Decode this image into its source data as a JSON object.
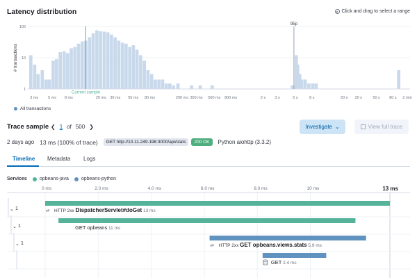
{
  "header": {
    "title": "Latency distribution",
    "hint": "Click and drag to select a range"
  },
  "chart_data": {
    "type": "bar",
    "ylabel": "# transactions",
    "y_scale": "log",
    "y_ticks": [
      "100",
      "10",
      "1"
    ],
    "x_scale": "log",
    "x_ticks": [
      "3 ms",
      "5 ms",
      "8 ms",
      "20 ms",
      "30 ms",
      "50 ms",
      "80 ms",
      "200 ms",
      "300 ms",
      "500 ms",
      "800 ms",
      "2 s",
      "3 s",
      "5 s",
      "8 s",
      "20 s",
      "30 s",
      "50 s",
      "80 s",
      "2 min"
    ],
    "annotations": [
      {
        "label": "Current sample",
        "at": "13 ms"
      },
      {
        "label": "95p",
        "at": "4.8 s"
      }
    ],
    "series": [
      {
        "legend": "All transactions",
        "color": "#6092c0",
        "bins_ms": [
          2.6,
          2.9,
          3.2,
          3.6,
          4.0,
          4.4,
          4.9,
          5.4,
          6.0,
          6.7,
          7.4,
          8.2,
          9.1,
          10.1,
          11.2,
          12.4,
          13.8,
          15.3,
          17.0,
          18.8,
          20.9,
          23.2,
          25.7,
          28.5,
          31.6,
          35.1,
          38.9,
          43.2,
          47.9,
          53.1,
          58.9,
          65.4,
          72.5,
          80.5,
          89.3,
          99.0,
          110,
          122,
          135,
          150,
          170,
          250,
          320,
          450,
          4400,
          4600,
          4900,
          5100,
          5400,
          5700,
          6300,
          7000,
          7800,
          8600,
          90000
        ],
        "counts": [
          12,
          6,
          3,
          4,
          2,
          2,
          8,
          9,
          15,
          16,
          14,
          20,
          22,
          28,
          33,
          35,
          45,
          60,
          75,
          70,
          68,
          65,
          55,
          45,
          35,
          30,
          28,
          22,
          25,
          18,
          12,
          8,
          4,
          3,
          2,
          2,
          2,
          1.5,
          1.5,
          1.3,
          1.5,
          1.3,
          1.3,
          1.3,
          1.3,
          1.3,
          12,
          6,
          3,
          2,
          2,
          1.5,
          1.5,
          1.5,
          4
        ]
      }
    ],
    "legend": "bottom-left"
  },
  "trace": {
    "title": "Trace sample",
    "page_current": "1",
    "page_of": "of",
    "page_total": "500",
    "investigate_label": "Investigate",
    "view_full_label": "View full trace",
    "age": "2 days ago",
    "duration": "13 ms (100% of trace)",
    "request": "GET http://10.11.249.198:3000/api/stats",
    "status": "200 OK",
    "agent": "Python aiohttp (3.3.2)"
  },
  "tabs": [
    {
      "label": "Timeline",
      "active": true
    },
    {
      "label": "Metadata",
      "active": false
    },
    {
      "label": "Logs",
      "active": false
    }
  ],
  "services": {
    "label": "Services",
    "items": [
      {
        "name": "opbeans-java",
        "color": "#54b399"
      },
      {
        "name": "opbeans-python",
        "color": "#6092c0"
      }
    ]
  },
  "waterfall": {
    "axis_ticks": [
      "0 ms",
      "2.0 ms",
      "4.0 ms",
      "6.0 ms",
      "8.0 ms",
      "10 ms"
    ],
    "axis_end": "13 ms",
    "total_ms": 13,
    "rows": [
      {
        "collapse_count": "1",
        "start_ms": 0,
        "dur_ms": 13,
        "color": "#54b399",
        "prefix": "HTTP 2xx",
        "name": "DispatcherServlet#doGet",
        "duration_label": "13 ms",
        "bold": true,
        "icon": "arrows-icon",
        "depth": 0
      },
      {
        "collapse_count": "1",
        "start_ms": 0.5,
        "dur_ms": 11.2,
        "color": "#54b399",
        "prefix": "",
        "name": "GET opbeans",
        "duration_label": "11 ms",
        "bold": false,
        "icon": "",
        "depth": 1
      },
      {
        "collapse_count": "1",
        "start_ms": 6.2,
        "dur_ms": 5.9,
        "color": "#6092c0",
        "prefix": "HTTP 2xx",
        "name": "GET opbeans.views.stats",
        "duration_label": "5.9 ms",
        "bold": true,
        "icon": "arrows-icon",
        "depth": 2
      },
      {
        "collapse_count": "",
        "start_ms": 8.2,
        "dur_ms": 2.4,
        "color": "#6092c0",
        "prefix": "",
        "name": "GET",
        "duration_label": "2.4 ms",
        "bold": false,
        "icon": "database-icon",
        "depth": 3
      }
    ]
  }
}
